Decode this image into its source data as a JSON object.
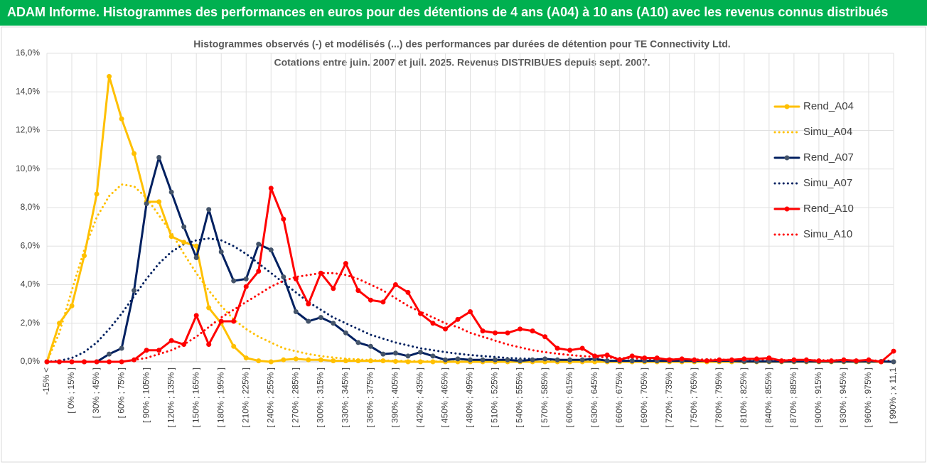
{
  "chart_data": {
    "type": "line",
    "header": "ADAM Informe. Histogrammes des performances en euros pour des détentions de 4 ans (A04) à 10 ans (A10) avec les revenus connus distribués",
    "title": "Histogrammes observés (-) et modélisés (...)  des performances par durées de détention pour TE Connectivity Ltd.",
    "subtitle": "Cotations entre juin. 2007 et juil. 2025. Revenus DISTRIBUES depuis sept. 2007.",
    "categories": [
      "-15% <",
      null,
      "[ 0% ; 15% ]",
      null,
      "[ 30% ; 45% ]",
      null,
      "[ 60% ; 75% ]",
      null,
      "[ 90% ; 105% ]",
      null,
      "[ 120% ; 135% ]",
      null,
      "[ 150% ; 165% ]",
      null,
      "[ 180% ; 195% ]",
      null,
      "[ 210% ; 225% ]",
      null,
      "[ 240% ; 255% ]",
      null,
      "[ 270% ; 285% ]",
      null,
      "[ 300% ; 315% ]",
      null,
      "[ 330% ; 345% ]",
      null,
      "[ 360% ; 375% ]",
      null,
      "[ 390% ; 405% ]",
      null,
      "[ 420% ; 435% ]",
      null,
      "[ 450% ; 465% ]",
      null,
      "[ 480% ; 495% ]",
      null,
      "[ 510% ; 525% ]",
      null,
      "[ 540% ; 555% ]",
      null,
      "[ 570% ; 585% ]",
      null,
      "[ 600% ; 615% ]",
      null,
      "[ 630% ; 645% ]",
      null,
      "[ 660% ; 675% ]",
      null,
      "[ 690% ; 705% ]",
      null,
      "[ 720% ; 735% ]",
      null,
      "[ 750% ; 765% ]",
      null,
      "[ 780% ; 795% ]",
      null,
      "[ 810% ; 825% ]",
      null,
      "[ 840% ; 855% ]",
      null,
      "[ 870% ; 885% ]",
      null,
      "[ 900% ; 915% ]",
      null,
      "[ 930% ; 945% ]",
      null,
      "[ 960% ; 975% ]",
      null,
      "[ 990% ; x 11,1"
    ],
    "ylim": [
      0,
      16
    ],
    "yticks": [
      {
        "value": 0,
        "label": "0,0%"
      },
      {
        "value": 2,
        "label": "2,0%"
      },
      {
        "value": 4,
        "label": "4,0%"
      },
      {
        "value": 6,
        "label": "6,0%"
      },
      {
        "value": 8,
        "label": "8,0%"
      },
      {
        "value": 10,
        "label": "10,0%"
      },
      {
        "value": 12,
        "label": "12,0%"
      },
      {
        "value": 14,
        "label": "14,0%"
      },
      {
        "value": 16,
        "label": "16,0%"
      }
    ],
    "grid": true,
    "legend": "right",
    "series": [
      {
        "name": "Rend_A04",
        "color": "#ffc000",
        "style": "solid",
        "markers": true,
        "values": [
          0,
          2.0,
          2.9,
          5.5,
          8.7,
          14.8,
          12.6,
          10.8,
          8.3,
          8.3,
          6.5,
          6.2,
          6.0,
          2.8,
          2.0,
          0.8,
          0.2,
          0.05,
          0,
          0.1,
          0.15,
          0.1,
          0.1,
          0.05,
          0.05,
          0.05,
          0.05,
          0.05,
          0.02,
          0,
          0,
          0,
          0,
          0,
          0,
          0,
          0,
          0,
          0,
          0,
          0,
          0,
          0,
          0,
          0,
          0,
          0,
          0,
          0,
          0,
          0,
          0,
          0,
          0,
          0,
          0,
          0,
          0,
          0,
          0,
          0,
          0,
          0,
          0,
          0,
          0,
          0,
          0,
          0
        ]
      },
      {
        "name": "Simu_A04",
        "color": "#ffc000",
        "style": "dotted",
        "markers": false,
        "values": [
          0,
          1.5,
          3.7,
          5.8,
          7.5,
          8.6,
          9.2,
          9.1,
          8.5,
          7.6,
          6.7,
          5.6,
          4.6,
          3.7,
          2.9,
          2.2,
          1.7,
          1.3,
          1.0,
          0.7,
          0.55,
          0.4,
          0.3,
          0.22,
          0.16,
          0.12,
          0.09,
          0.07,
          0.05,
          0.04,
          0.03,
          0.02,
          0.02,
          0.01,
          0,
          0,
          0,
          0,
          0,
          0,
          0,
          0,
          0,
          0,
          0,
          0,
          0,
          0,
          0,
          0,
          0,
          0,
          0,
          0,
          0,
          0,
          0,
          0,
          0,
          0,
          0,
          0,
          0,
          0,
          0,
          0,
          0,
          0,
          0
        ]
      },
      {
        "name": "Rend_A07",
        "color": "#002060",
        "marker_color": "#44546a",
        "style": "solid",
        "markers": true,
        "values": [
          0,
          0,
          0,
          0,
          0,
          0.4,
          0.7,
          3.7,
          8.2,
          10.6,
          8.8,
          7.0,
          5.4,
          7.9,
          5.7,
          4.2,
          4.3,
          6.1,
          5.8,
          4.4,
          2.6,
          2.1,
          2.3,
          2.0,
          1.5,
          1.0,
          0.8,
          0.4,
          0.45,
          0.3,
          0.5,
          0.3,
          0.1,
          0.15,
          0.1,
          0.1,
          0.1,
          0.1,
          0.05,
          0.1,
          0.15,
          0.1,
          0.1,
          0.1,
          0.15,
          0.05,
          0.05,
          0.05,
          0.05,
          0.05,
          0.05,
          0.05,
          0.05,
          0.05,
          0.05,
          0.05,
          0.02,
          0.02,
          0.02,
          0.02,
          0.02,
          0.02,
          0.02,
          0.02,
          0.02,
          0.02,
          0.02,
          0.02,
          0
        ]
      },
      {
        "name": "Simu_A07",
        "color": "#002060",
        "style": "dotted",
        "markers": false,
        "values": [
          0,
          0.05,
          0.2,
          0.5,
          1.0,
          1.7,
          2.5,
          3.4,
          4.3,
          5.1,
          5.7,
          6.1,
          6.3,
          6.4,
          6.3,
          6.0,
          5.6,
          5.1,
          4.6,
          4.1,
          3.6,
          3.1,
          2.7,
          2.3,
          2.0,
          1.7,
          1.4,
          1.2,
          1.0,
          0.85,
          0.7,
          0.6,
          0.5,
          0.42,
          0.35,
          0.3,
          0.25,
          0.2,
          0.17,
          0.15,
          0.12,
          0.1,
          0.08,
          0.07,
          0.06,
          0.05,
          0.04,
          0.04,
          0.03,
          0.03,
          0.03,
          0.03,
          0.02,
          0.02,
          0.02,
          0.02,
          0.02,
          0.02,
          0.02,
          0.02,
          0.01,
          0.01,
          0.01,
          0.01,
          0.01,
          0.01,
          0.01,
          0.01,
          0.01
        ]
      },
      {
        "name": "Rend_A10",
        "color": "#ff0000",
        "style": "solid",
        "markers": true,
        "values": [
          0,
          0,
          0,
          0,
          0,
          0,
          0,
          0.1,
          0.6,
          0.6,
          1.1,
          0.9,
          2.4,
          0.9,
          2.1,
          2.1,
          3.9,
          4.7,
          9.0,
          7.4,
          4.3,
          3.0,
          4.6,
          3.8,
          5.1,
          3.7,
          3.2,
          3.1,
          4.0,
          3.6,
          2.5,
          2.0,
          1.7,
          2.2,
          2.6,
          1.6,
          1.5,
          1.5,
          1.7,
          1.6,
          1.3,
          0.7,
          0.6,
          0.7,
          0.3,
          0.35,
          0.1,
          0.3,
          0.2,
          0.2,
          0.1,
          0.15,
          0.1,
          0.05,
          0.1,
          0.1,
          0.15,
          0.15,
          0.2,
          0.05,
          0.1,
          0.1,
          0.05,
          0.05,
          0.1,
          0.05,
          0.1,
          0,
          0.55
        ]
      },
      {
        "name": "Simu_A10",
        "color": "#ff0000",
        "style": "dotted",
        "markers": false,
        "values": [
          0,
          0,
          0,
          0,
          0,
          0,
          0,
          0.1,
          0.2,
          0.4,
          0.6,
          0.9,
          1.3,
          1.8,
          2.3,
          2.7,
          3.1,
          3.5,
          3.9,
          4.2,
          4.4,
          4.5,
          4.6,
          4.6,
          4.5,
          4.3,
          4.0,
          3.7,
          3.3,
          2.9,
          2.6,
          2.3,
          2.0,
          1.8,
          1.5,
          1.3,
          1.1,
          0.9,
          0.75,
          0.6,
          0.5,
          0.42,
          0.35,
          0.3,
          0.25,
          0.22,
          0.2,
          0.18,
          0.16,
          0.15,
          0.14,
          0.13,
          0.12,
          0.12,
          0.11,
          0.11,
          0.1,
          0.1,
          0.1,
          0.09,
          0.09,
          0.09,
          0.08,
          0.08,
          0.08,
          0.07,
          0.07,
          0.06,
          0.05
        ]
      }
    ]
  }
}
